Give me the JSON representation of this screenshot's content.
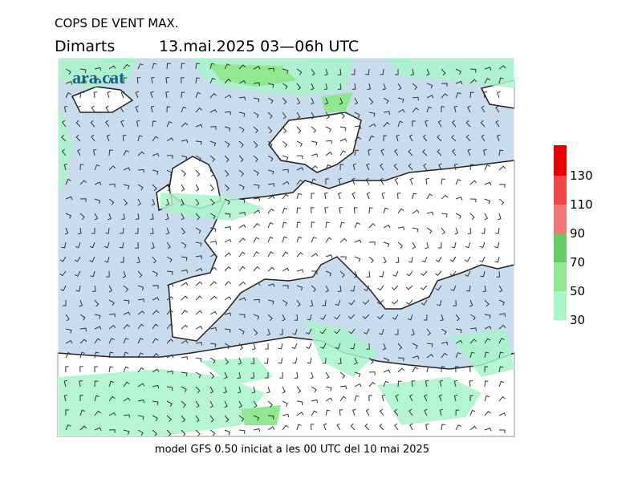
{
  "header": {
    "title": "COPS DE VENT MAX.",
    "day": "Dimarts",
    "date": "13.mai.2025 03—06h UTC"
  },
  "logo": "ara.cat",
  "footer": "model GFS 0.50 iniciat a les 00 UTC del 10 mai 2025",
  "legend": {
    "ticks": [
      30,
      50,
      70,
      90,
      110,
      130
    ],
    "colors": [
      "#a8f5c8",
      "#90e890",
      "#66cc66",
      "#f07878",
      "#f04848",
      "#e80000"
    ]
  }
}
